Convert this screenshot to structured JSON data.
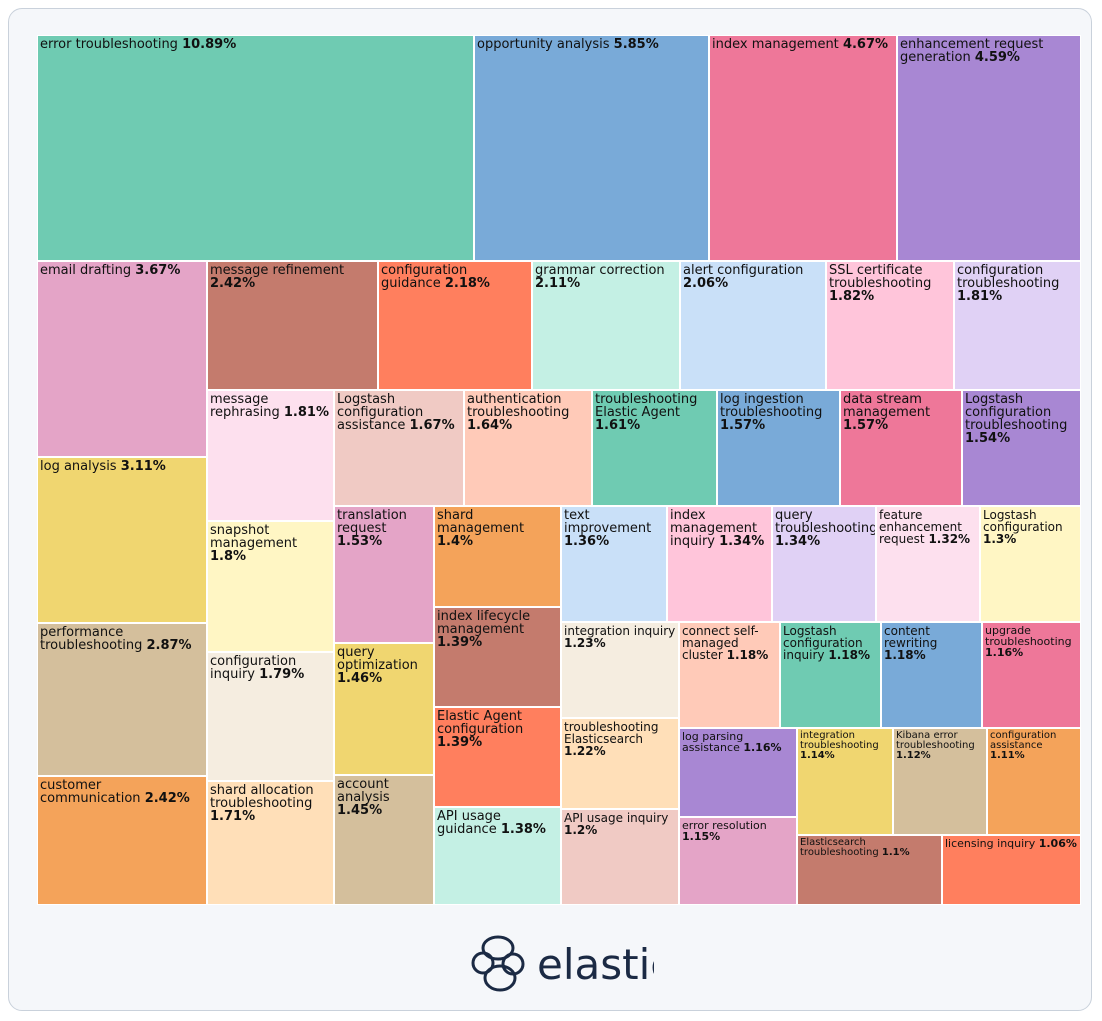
{
  "chart_data": {
    "type": "treemap",
    "value_unit": "%",
    "items": [
      {
        "name": "error troubleshooting",
        "value": 10.89,
        "color": "#6fcbb2"
      },
      {
        "name": "opportunity analysis",
        "value": 5.85,
        "color": "#79aad8"
      },
      {
        "name": "index management",
        "value": 4.67,
        "color": "#ee7799"
      },
      {
        "name": "enhancement request generation",
        "value": 4.59,
        "color": "#a887d3"
      },
      {
        "name": "email drafting",
        "value": 3.67,
        "color": "#e4a4c7"
      },
      {
        "name": "message refinement",
        "value": 2.42,
        "color": "#c47b6d"
      },
      {
        "name": "configuration guidance",
        "value": 2.18,
        "color": "#ff7f5e"
      },
      {
        "name": "grammar correction",
        "value": 2.11,
        "color": "#c4f0e4"
      },
      {
        "name": "alert configuration",
        "value": 2.06,
        "color": "#c9e0f8"
      },
      {
        "name": "SSL certificate troubleshooting",
        "value": 1.82,
        "color": "#ffc5da"
      },
      {
        "name": "configuration troubleshooting",
        "value": 1.81,
        "color": "#e0d1f5"
      },
      {
        "name": "message rephrasing",
        "value": 1.81,
        "color": "#fde0ee"
      },
      {
        "name": "Logstash configuration assistance",
        "value": 1.67,
        "color": "#f0cac4"
      },
      {
        "name": "authentication troubleshooting",
        "value": 1.64,
        "color": "#ffcab8"
      },
      {
        "name": "troubleshooting Elastic Agent",
        "value": 1.61,
        "color": "#6fcbb2"
      },
      {
        "name": "log ingestion troubleshooting",
        "value": 1.57,
        "color": "#79aad8"
      },
      {
        "name": "data stream management",
        "value": 1.57,
        "color": "#ee7799"
      },
      {
        "name": "Logstash configuration troubleshooting",
        "value": 1.54,
        "color": "#a887d3"
      },
      {
        "name": "log analysis",
        "value": 3.11,
        "color": "#f0d670"
      },
      {
        "name": "snapshot management",
        "value": 1.8,
        "color": "#fff6c4"
      },
      {
        "name": "translation request",
        "value": 1.53,
        "color": "#e4a4c7"
      },
      {
        "name": "shard management",
        "value": 1.4,
        "color": "#f4a35a"
      },
      {
        "name": "text improvement",
        "value": 1.36,
        "color": "#c9e0f8"
      },
      {
        "name": "index management inquiry",
        "value": 1.34,
        "color": "#ffc5da"
      },
      {
        "name": "query troubleshooting",
        "value": 1.34,
        "color": "#e0d1f5"
      },
      {
        "name": "feature enhancement request",
        "value": 1.32,
        "color": "#fde0ee"
      },
      {
        "name": "Logstash configuration",
        "value": 1.3,
        "color": "#fff6c4"
      },
      {
        "name": "performance troubleshooting",
        "value": 2.87,
        "color": "#d4bf9c"
      },
      {
        "name": "configuration inquiry",
        "value": 1.79,
        "color": "#f5ede0"
      },
      {
        "name": "query optimization",
        "value": 1.46,
        "color": "#f0d670"
      },
      {
        "name": "index lifecycle management",
        "value": 1.39,
        "color": "#c47b6d"
      },
      {
        "name": "integration inquiry",
        "value": 1.23,
        "color": "#f5ede0"
      },
      {
        "name": "connect self-managed cluster",
        "value": 1.18,
        "color": "#ffcab8"
      },
      {
        "name": "Logstash configuration inquiry",
        "value": 1.18,
        "color": "#6fcbb2"
      },
      {
        "name": "content rewriting",
        "value": 1.18,
        "color": "#79aad8"
      },
      {
        "name": "upgrade troubleshooting",
        "value": 1.16,
        "color": "#ee7799"
      },
      {
        "name": "Elastic Agent configuration",
        "value": 1.39,
        "color": "#ff7f5e"
      },
      {
        "name": "troubleshooting Elasticsearch",
        "value": 1.22,
        "color": "#ffdfb8"
      },
      {
        "name": "log parsing assistance",
        "value": 1.16,
        "color": "#a887d3"
      },
      {
        "name": "integration troubleshooting",
        "value": 1.14,
        "color": "#f0d670"
      },
      {
        "name": "Kibana error troubleshooting",
        "value": 1.12,
        "color": "#d4bf9c"
      },
      {
        "name": "configuration assistance",
        "value": 1.11,
        "color": "#f4a35a"
      },
      {
        "name": "customer communication",
        "value": 2.42,
        "color": "#f4a35a"
      },
      {
        "name": "shard allocation troubleshooting",
        "value": 1.71,
        "color": "#ffdfb8"
      },
      {
        "name": "account analysis",
        "value": 1.45,
        "color": "#d4bf9c"
      },
      {
        "name": "API usage guidance",
        "value": 1.38,
        "color": "#c4f0e4"
      },
      {
        "name": "API usage inquiry",
        "value": 1.2,
        "color": "#f0cac4"
      },
      {
        "name": "error resolution",
        "value": 1.15,
        "color": "#e4a4c7"
      },
      {
        "name": "Elasticsearch troubleshooting",
        "value": 1.1,
        "color": "#c47b6d"
      },
      {
        "name": "licensing inquiry",
        "value": 1.06,
        "color": "#ff7f5e"
      }
    ]
  },
  "logo": {
    "text": "elastic",
    "color": "#1b2a44"
  }
}
